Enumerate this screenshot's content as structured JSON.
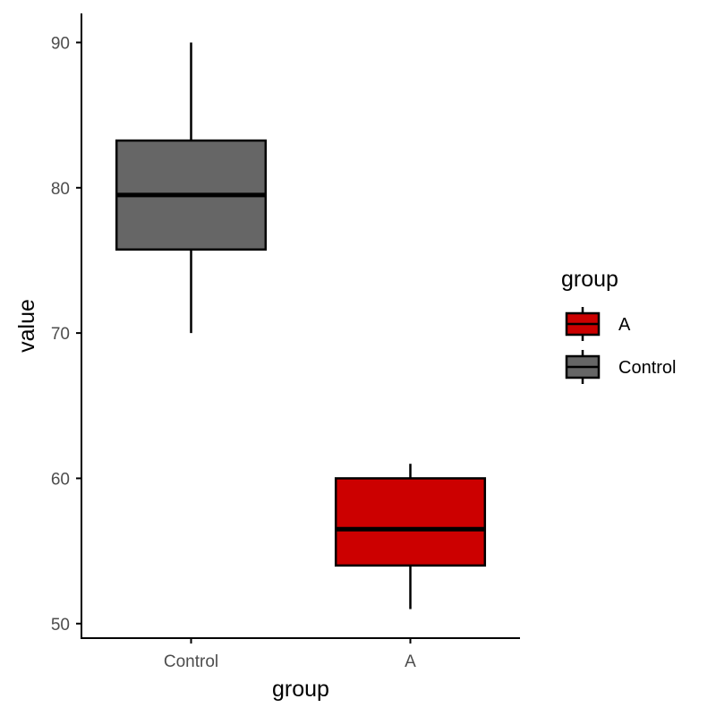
{
  "chart_data": {
    "type": "boxplot",
    "xlabel": "group",
    "ylabel": "value",
    "categories": [
      "Control",
      "A"
    ],
    "ylim": [
      49,
      92
    ],
    "yticks": [
      50,
      60,
      70,
      80,
      90
    ],
    "y_tick_labels": [
      "50",
      "60",
      "70",
      "80",
      "90"
    ],
    "grid": false,
    "legend": {
      "title": "group",
      "position": "right",
      "entries": [
        "A",
        "Control"
      ]
    },
    "series": [
      {
        "category": "Control",
        "legend_label": "Control",
        "color": "#666666",
        "min": 70,
        "q1": 75.75,
        "median": 79.5,
        "q3": 83.25,
        "max": 90
      },
      {
        "category": "A",
        "legend_label": "A",
        "color": "#CC0000",
        "min": 51,
        "q1": 54,
        "median": 56.5,
        "q3": 60,
        "max": 61
      }
    ]
  }
}
